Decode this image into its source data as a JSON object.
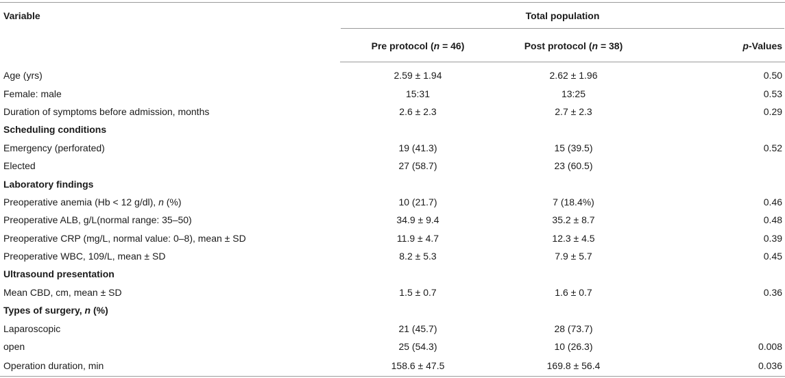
{
  "header": {
    "variable": "Variable",
    "total_population": "Total population",
    "pre_protocol": "Pre protocol (n = 46)",
    "pre_label": "Pre protocol (",
    "pre_n": "n",
    "pre_value": " = 46)",
    "post_label": "Post protocol (",
    "post_n": "n",
    "post_value": " = 38)",
    "p_italic": "p",
    "p_rest": "-Values"
  },
  "rows": [
    {
      "type": "data",
      "label": "Age (yrs)",
      "pre": "2.59 ± 1.94",
      "post": "2.62 ± 1.96",
      "p": "0.50"
    },
    {
      "type": "data",
      "label": "Female: male",
      "pre": "15:31",
      "post": "13:25",
      "p": "0.53"
    },
    {
      "type": "data",
      "label": "Duration of symptoms before admission, months",
      "pre": "2.6 ± 2.3",
      "post": "2.7 ± 2.3",
      "p": "0.29"
    },
    {
      "type": "section",
      "label": "Scheduling conditions"
    },
    {
      "type": "data",
      "label": "Emergency (perforated)",
      "pre": "19 (41.3)",
      "post": "15 (39.5)",
      "p": "0.52"
    },
    {
      "type": "data",
      "label": "Elected",
      "pre": "27 (58.7)",
      "post": "23 (60.5)",
      "p": ""
    },
    {
      "type": "section",
      "label": "Laboratory findings"
    },
    {
      "type": "data",
      "label_pre": "Preoperative anemia (Hb < 12 g/dl), ",
      "label_italic": "n",
      "label_post": " (%)",
      "pre": "10 (21.7)",
      "post": "7 (18.4%)",
      "p": "0.46"
    },
    {
      "type": "data",
      "label": "Preoperative ALB, g/L(normal range: 35–50)",
      "pre": "34.9 ± 9.4",
      "post": "35.2 ± 8.7",
      "p": "0.48"
    },
    {
      "type": "data",
      "label": "Preoperative CRP (mg/L, normal value: 0–8), mean ± SD",
      "pre": "11.9 ± 4.7",
      "post": "12.3 ± 4.5",
      "p": "0.39"
    },
    {
      "type": "data",
      "label": "Preoperative WBC, 109/L, mean ± SD",
      "pre": "8.2 ± 5.3",
      "post": "7.9 ± 5.7",
      "p": "0.45"
    },
    {
      "type": "section",
      "label": "Ultrasound presentation"
    },
    {
      "type": "data",
      "label": "Mean CBD, cm, mean ± SD",
      "pre": "1.5 ± 0.7",
      "post": "1.6 ± 0.7",
      "p": "0.36"
    },
    {
      "type": "section",
      "label_pre": "Types of surgery, ",
      "label_italic": "n",
      "label_post": " (%)"
    },
    {
      "type": "data",
      "label": "Laparoscopic",
      "pre": "21 (45.7)",
      "post": "28 (73.7)",
      "p": ""
    },
    {
      "type": "data",
      "label": "open",
      "pre": "25 (54.3)",
      "post": "10 (26.3)",
      "p": "0.008"
    },
    {
      "type": "data",
      "label": "Operation duration, min",
      "pre": "158.6 ± 47.5",
      "post": "169.8 ± 56.4",
      "p": "0.036"
    }
  ]
}
